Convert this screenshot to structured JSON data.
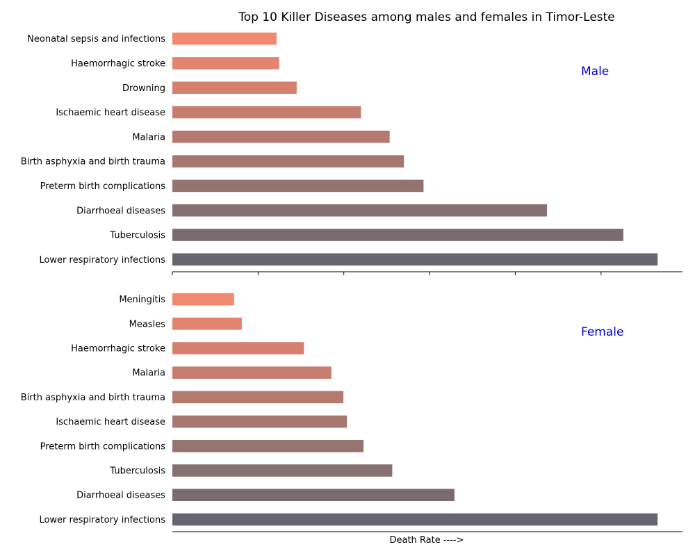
{
  "chart_data": {
    "type": "bar",
    "orientation": "horizontal",
    "title": "Top 10 Killer Diseases among males and females in Timor-Leste",
    "xlabel": "Death Rate ---->",
    "grid": false,
    "panels": [
      {
        "label": "Male",
        "categories": [
          "Neonatal sepsis and infections",
          "Haemorrhagic stroke",
          "Drowning",
          "Ischaemic heart disease",
          "Malaria",
          "Birth asphyxia and birth trauma",
          "Preterm birth complications",
          "Diarrhoeal diseases",
          "Tuberculosis",
          "Lower respiratory infections"
        ],
        "values": [
          24.3,
          24.9,
          29.0,
          44.0,
          50.7,
          54.0,
          58.6,
          87.4,
          105.2,
          113.2
        ],
        "colors": [
          "#f0896f",
          "#e2846f",
          "#d5806f",
          "#c67c6f",
          "#b47a6f",
          "#a5776f",
          "#947371",
          "#877072",
          "#796b6f",
          "#676670"
        ]
      },
      {
        "label": "Female",
        "categories": [
          "Meningitis",
          "Measles",
          "Haemorrhagic stroke",
          "Malaria",
          "Birth asphyxia and birth trauma",
          "Ischaemic heart disease",
          "Preterm birth complications",
          "Tuberculosis",
          "Diarrhoeal diseases",
          "Lower respiratory infections"
        ],
        "values": [
          14.4,
          16.2,
          30.7,
          37.1,
          39.9,
          40.7,
          44.6,
          51.3,
          65.8,
          113.2
        ],
        "colors": [
          "#f0896f",
          "#e2846f",
          "#d5806f",
          "#c67c6f",
          "#b47a6f",
          "#a5776f",
          "#947371",
          "#877072",
          "#796b6f",
          "#676670"
        ]
      }
    ],
    "xlim": [
      0,
      119
    ]
  }
}
